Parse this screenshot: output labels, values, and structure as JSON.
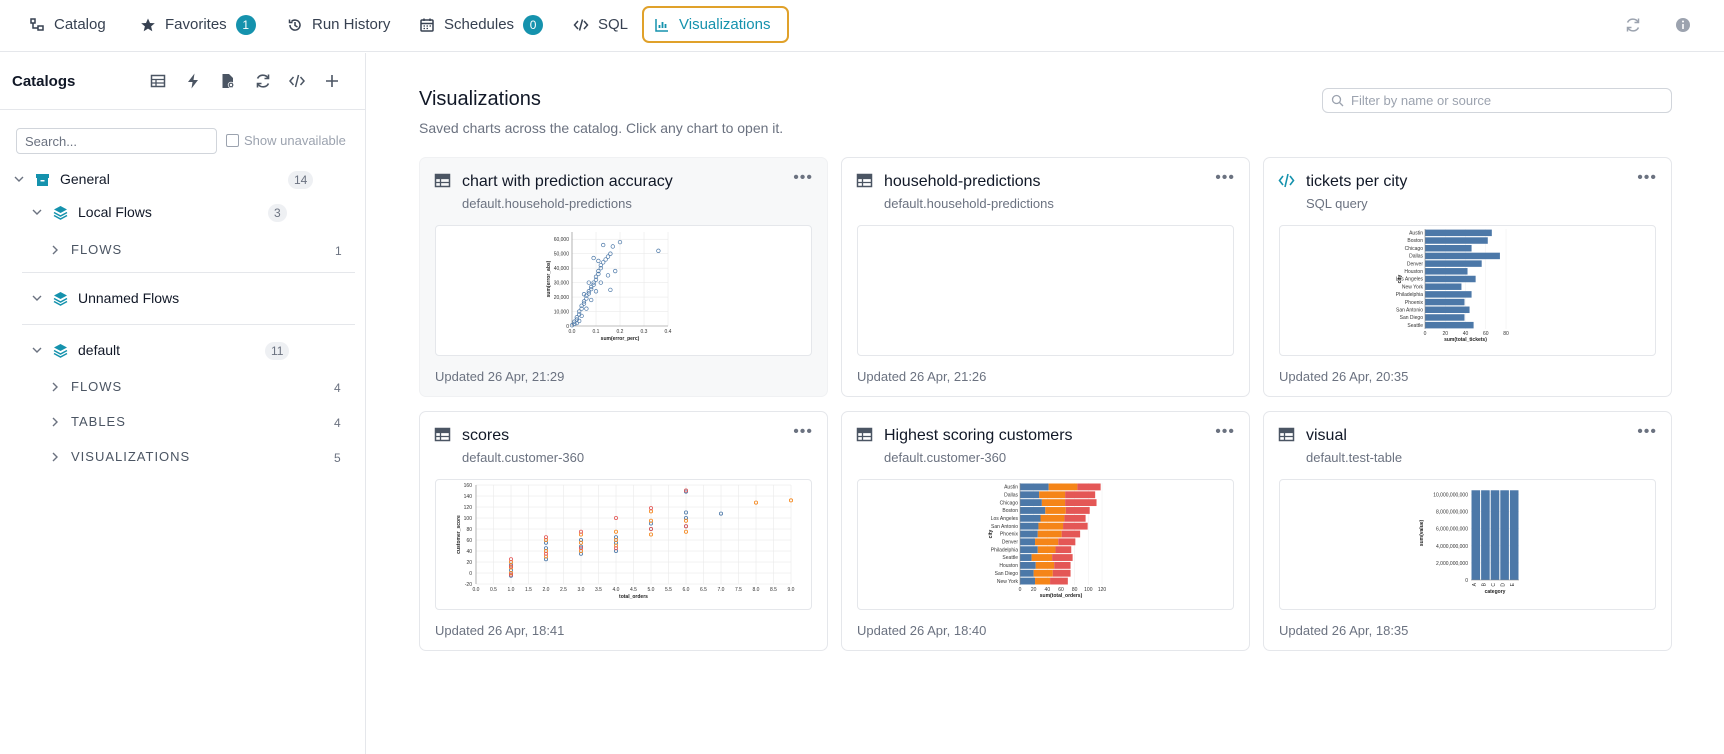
{
  "nav": {
    "tabs": [
      {
        "label": "Catalog",
        "icon": "catalog-icon"
      },
      {
        "label": "Favorites",
        "icon": "star-icon",
        "badge": "1"
      },
      {
        "label": "Run History",
        "icon": "history-icon"
      },
      {
        "label": "Schedules",
        "icon": "calendar-icon",
        "badge": "0"
      },
      {
        "label": "SQL",
        "icon": "code-icon"
      },
      {
        "label": "Visualizations",
        "icon": "chart-icon",
        "active": true
      }
    ]
  },
  "sidebar": {
    "title": "Catalogs",
    "search_placeholder": "Search...",
    "show_unavailable": "Show unavailable",
    "tree": {
      "general": {
        "label": "General",
        "count": "14"
      },
      "local_flows": {
        "label": "Local Flows",
        "count": "3"
      },
      "local_flows_flows": {
        "label": "FLOWS",
        "count": "1"
      },
      "unnamed_flows": {
        "label": "Unnamed Flows"
      },
      "default": {
        "label": "default",
        "count": "11"
      },
      "default_flows": {
        "label": "FLOWS",
        "count": "4"
      },
      "default_tables": {
        "label": "TABLES",
        "count": "4"
      },
      "default_visualizations": {
        "label": "VISUALIZATIONS",
        "count": "5"
      }
    }
  },
  "main": {
    "title": "Visualizations",
    "subtitle": "Saved charts across the catalog. Click any chart to open it.",
    "filter_placeholder": "Filter by name or source",
    "menu_glyph": "•••",
    "cards": [
      {
        "title": "chart with prediction accuracy",
        "source": "default.household-predictions",
        "updated": "Updated 26 Apr, 21:29",
        "icon": "table-icon"
      },
      {
        "title": "household-predictions",
        "source": "default.household-predictions",
        "updated": "Updated 26 Apr, 21:26",
        "icon": "table-icon"
      },
      {
        "title": "tickets per city",
        "source": "SQL query",
        "updated": "Updated 26 Apr, 20:35",
        "icon": "code-icon"
      },
      {
        "title": "scores",
        "source": "default.customer-360",
        "updated": "Updated 26 Apr, 18:41",
        "icon": "table-icon"
      },
      {
        "title": "Highest scoring customers",
        "source": "default.customer-360",
        "updated": "Updated 26 Apr, 18:40",
        "icon": "table-icon"
      },
      {
        "title": "visual",
        "source": "default.test-table",
        "updated": "Updated 26 Apr, 18:35",
        "icon": "table-icon"
      }
    ]
  },
  "chart_data": [
    {
      "type": "scatter",
      "xlabel": "sum(error_perc)",
      "ylabel": "sum(error_abs)",
      "xlim": [
        0,
        0.4
      ],
      "ylim": [
        0,
        65000
      ],
      "xticks": [
        "0.0",
        "0.1",
        "0.2",
        "0.3",
        "0.4"
      ],
      "yticks": [
        "0",
        "10,000",
        "20,000",
        "30,000",
        "40,000",
        "50,000",
        "60,000"
      ],
      "points": [
        [
          0.0,
          500
        ],
        [
          0.01,
          1500
        ],
        [
          0.01,
          3000
        ],
        [
          0.02,
          4500
        ],
        [
          0.02,
          6000
        ],
        [
          0.03,
          8000
        ],
        [
          0.03,
          10000
        ],
        [
          0.04,
          12000
        ],
        [
          0.04,
          14000
        ],
        [
          0.05,
          15500
        ],
        [
          0.05,
          17000
        ],
        [
          0.06,
          19000
        ],
        [
          0.06,
          21000
        ],
        [
          0.07,
          22500
        ],
        [
          0.07,
          24000
        ],
        [
          0.08,
          25500
        ],
        [
          0.08,
          27000
        ],
        [
          0.09,
          28500
        ],
        [
          0.09,
          30000
        ],
        [
          0.1,
          32000
        ],
        [
          0.1,
          34000
        ],
        [
          0.11,
          36000
        ],
        [
          0.11,
          38000
        ],
        [
          0.12,
          40000
        ],
        [
          0.12,
          42000
        ],
        [
          0.13,
          44000
        ],
        [
          0.14,
          46000
        ],
        [
          0.15,
          48000
        ],
        [
          0.16,
          50000
        ],
        [
          0.17,
          55000
        ],
        [
          0.2,
          58000
        ],
        [
          0.36,
          52000
        ],
        [
          0.15,
          35000
        ],
        [
          0.18,
          38000
        ],
        [
          0.12,
          30000
        ],
        [
          0.16,
          25000
        ],
        [
          0.08,
          18000
        ],
        [
          0.06,
          12000
        ],
        [
          0.04,
          7000
        ],
        [
          0.03,
          3500
        ],
        [
          0.02,
          2000
        ],
        [
          0.11,
          45000
        ],
        [
          0.09,
          47000
        ],
        [
          0.13,
          56000
        ],
        [
          0.05,
          22000
        ],
        [
          0.07,
          30000
        ],
        [
          0.1,
          24000
        ]
      ],
      "color": "#4c78a8"
    },
    {
      "type": "bar",
      "orientation": "horizontal",
      "xlabel": "sum(total_tickets)",
      "ylabel": "city",
      "xlim": [
        0,
        80
      ],
      "xticks": [
        "0",
        "20",
        "40",
        "60",
        "80"
      ],
      "categories": [
        "Austin",
        "Boston",
        "Chicago",
        "Dallas",
        "Denver",
        "Houston",
        "Los Angeles",
        "New York",
        "Philadelphia",
        "Phoenix",
        "San Antonio",
        "San Diego",
        "Seattle"
      ],
      "values": [
        66,
        62,
        46,
        74,
        56,
        42,
        50,
        36,
        46,
        39,
        44,
        39,
        48
      ],
      "color": "#4c78a8"
    },
    {
      "type": "scatter",
      "xlabel": "total_orders",
      "ylabel": "customer_score",
      "xlim": [
        0,
        9
      ],
      "ylim": [
        -20,
        160
      ],
      "xticks": [
        "0.0",
        "0.5",
        "1.0",
        "1.5",
        "2.0",
        "2.5",
        "3.0",
        "3.5",
        "4.0",
        "4.5",
        "5.0",
        "5.5",
        "6.0",
        "6.5",
        "7.0",
        "7.5",
        "8.0",
        "8.5",
        "9.0"
      ],
      "yticks": [
        "-20",
        "0",
        "20",
        "40",
        "60",
        "80",
        "100",
        "120",
        "140",
        "160"
      ],
      "series": [
        {
          "color": "#4c78a8",
          "points": [
            [
              1,
              -5
            ],
            [
              1,
              5
            ],
            [
              1,
              15
            ],
            [
              2,
              25
            ],
            [
              2,
              45
            ],
            [
              2,
              55
            ],
            [
              3,
              35
            ],
            [
              3,
              48
            ],
            [
              3,
              60
            ],
            [
              4,
              40
            ],
            [
              4,
              55
            ],
            [
              4,
              65
            ],
            [
              5,
              80
            ],
            [
              5,
              90
            ],
            [
              6,
              85
            ],
            [
              6,
              100
            ],
            [
              6,
              110
            ],
            [
              6,
              148
            ],
            [
              7,
              108
            ]
          ]
        },
        {
          "color": "#f58518",
          "points": [
            [
              1,
              0
            ],
            [
              1,
              10
            ],
            [
              1,
              20
            ],
            [
              2,
              30
            ],
            [
              2,
              40
            ],
            [
              2,
              60
            ],
            [
              3,
              40
            ],
            [
              3,
              55
            ],
            [
              3,
              70
            ],
            [
              4,
              50
            ],
            [
              4,
              60
            ],
            [
              4,
              75
            ],
            [
              5,
              70
            ],
            [
              5,
              95
            ],
            [
              5,
              112
            ],
            [
              6,
              75
            ],
            [
              6,
              95
            ],
            [
              8,
              128
            ],
            [
              9,
              132
            ]
          ]
        },
        {
          "color": "#e45756",
          "points": [
            [
              1,
              -3
            ],
            [
              1,
              12
            ],
            [
              1,
              25
            ],
            [
              2,
              35
            ],
            [
              2,
              65
            ],
            [
              3,
              45
            ],
            [
              3,
              75
            ],
            [
              4,
              45
            ],
            [
              4,
              100
            ],
            [
              5,
              80
            ],
            [
              5,
              118
            ],
            [
              6,
              85
            ],
            [
              6,
              150
            ]
          ]
        }
      ]
    },
    {
      "type": "bar",
      "orientation": "horizontal",
      "stacked": true,
      "xlabel": "sum(total_orders)",
      "ylabel": "city",
      "xlim": [
        0,
        120
      ],
      "xticks": [
        "0",
        "20",
        "40",
        "60",
        "80",
        "100",
        "120"
      ],
      "categories": [
        "Austin",
        "Dallas",
        "Chicago",
        "Boston",
        "Los Angeles",
        "San Antonio",
        "Phoenix",
        "Denver",
        "Philadelphia",
        "Seattle",
        "Houston",
        "San Diego",
        "New York"
      ],
      "series": [
        {
          "color": "#4c78a8",
          "values": [
            42,
            28,
            32,
            37,
            30,
            27,
            26,
            22,
            26,
            17,
            23,
            20,
            22
          ]
        },
        {
          "color": "#f58518",
          "values": [
            42,
            38,
            34,
            30,
            35,
            36,
            35,
            34,
            26,
            30,
            27,
            28,
            22
          ]
        },
        {
          "color": "#e45756",
          "values": [
            34,
            44,
            46,
            35,
            31,
            36,
            27,
            25,
            23,
            30,
            24,
            26,
            26
          ]
        }
      ]
    },
    {
      "type": "bar",
      "xlabel": "category",
      "ylabel": "sum(value)",
      "ylim": [
        0,
        11000000000
      ],
      "yticks": [
        "0",
        "2,000,000,000",
        "4,000,000,000",
        "6,000,000,000",
        "8,000,000,000",
        "10,000,000,000"
      ],
      "categories": [
        "A",
        "B",
        "C",
        "D",
        "E"
      ],
      "values": [
        10500000000,
        10500000000,
        10500000000,
        10500000000,
        10500000000
      ],
      "color": "#4c78a8"
    }
  ]
}
